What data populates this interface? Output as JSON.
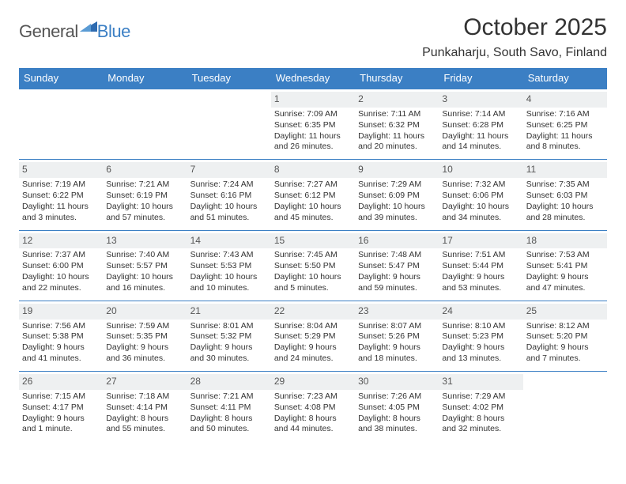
{
  "logo": {
    "text1": "General",
    "text2": "Blue"
  },
  "title": "October 2025",
  "location": "Punkaharju, South Savo, Finland",
  "colors": {
    "header_bg": "#3b7fc4",
    "header_text": "#ffffff",
    "daynum_bg": "#eef0f1",
    "rule": "#3b7fc4",
    "body_text": "#333333",
    "page_bg": "#ffffff"
  },
  "weekdays": [
    "Sunday",
    "Monday",
    "Tuesday",
    "Wednesday",
    "Thursday",
    "Friday",
    "Saturday"
  ],
  "weeks": [
    [
      null,
      null,
      null,
      {
        "n": "1",
        "sunrise": "7:09 AM",
        "sunset": "6:35 PM",
        "daylight": "11 hours and 26 minutes."
      },
      {
        "n": "2",
        "sunrise": "7:11 AM",
        "sunset": "6:32 PM",
        "daylight": "11 hours and 20 minutes."
      },
      {
        "n": "3",
        "sunrise": "7:14 AM",
        "sunset": "6:28 PM",
        "daylight": "11 hours and 14 minutes."
      },
      {
        "n": "4",
        "sunrise": "7:16 AM",
        "sunset": "6:25 PM",
        "daylight": "11 hours and 8 minutes."
      }
    ],
    [
      {
        "n": "5",
        "sunrise": "7:19 AM",
        "sunset": "6:22 PM",
        "daylight": "11 hours and 3 minutes."
      },
      {
        "n": "6",
        "sunrise": "7:21 AM",
        "sunset": "6:19 PM",
        "daylight": "10 hours and 57 minutes."
      },
      {
        "n": "7",
        "sunrise": "7:24 AM",
        "sunset": "6:16 PM",
        "daylight": "10 hours and 51 minutes."
      },
      {
        "n": "8",
        "sunrise": "7:27 AM",
        "sunset": "6:12 PM",
        "daylight": "10 hours and 45 minutes."
      },
      {
        "n": "9",
        "sunrise": "7:29 AM",
        "sunset": "6:09 PM",
        "daylight": "10 hours and 39 minutes."
      },
      {
        "n": "10",
        "sunrise": "7:32 AM",
        "sunset": "6:06 PM",
        "daylight": "10 hours and 34 minutes."
      },
      {
        "n": "11",
        "sunrise": "7:35 AM",
        "sunset": "6:03 PM",
        "daylight": "10 hours and 28 minutes."
      }
    ],
    [
      {
        "n": "12",
        "sunrise": "7:37 AM",
        "sunset": "6:00 PM",
        "daylight": "10 hours and 22 minutes."
      },
      {
        "n": "13",
        "sunrise": "7:40 AM",
        "sunset": "5:57 PM",
        "daylight": "10 hours and 16 minutes."
      },
      {
        "n": "14",
        "sunrise": "7:43 AM",
        "sunset": "5:53 PM",
        "daylight": "10 hours and 10 minutes."
      },
      {
        "n": "15",
        "sunrise": "7:45 AM",
        "sunset": "5:50 PM",
        "daylight": "10 hours and 5 minutes."
      },
      {
        "n": "16",
        "sunrise": "7:48 AM",
        "sunset": "5:47 PM",
        "daylight": "9 hours and 59 minutes."
      },
      {
        "n": "17",
        "sunrise": "7:51 AM",
        "sunset": "5:44 PM",
        "daylight": "9 hours and 53 minutes."
      },
      {
        "n": "18",
        "sunrise": "7:53 AM",
        "sunset": "5:41 PM",
        "daylight": "9 hours and 47 minutes."
      }
    ],
    [
      {
        "n": "19",
        "sunrise": "7:56 AM",
        "sunset": "5:38 PM",
        "daylight": "9 hours and 41 minutes."
      },
      {
        "n": "20",
        "sunrise": "7:59 AM",
        "sunset": "5:35 PM",
        "daylight": "9 hours and 36 minutes."
      },
      {
        "n": "21",
        "sunrise": "8:01 AM",
        "sunset": "5:32 PM",
        "daylight": "9 hours and 30 minutes."
      },
      {
        "n": "22",
        "sunrise": "8:04 AM",
        "sunset": "5:29 PM",
        "daylight": "9 hours and 24 minutes."
      },
      {
        "n": "23",
        "sunrise": "8:07 AM",
        "sunset": "5:26 PM",
        "daylight": "9 hours and 18 minutes."
      },
      {
        "n": "24",
        "sunrise": "8:10 AM",
        "sunset": "5:23 PM",
        "daylight": "9 hours and 13 minutes."
      },
      {
        "n": "25",
        "sunrise": "8:12 AM",
        "sunset": "5:20 PM",
        "daylight": "9 hours and 7 minutes."
      }
    ],
    [
      {
        "n": "26",
        "sunrise": "7:15 AM",
        "sunset": "4:17 PM",
        "daylight": "9 hours and 1 minute."
      },
      {
        "n": "27",
        "sunrise": "7:18 AM",
        "sunset": "4:14 PM",
        "daylight": "8 hours and 55 minutes."
      },
      {
        "n": "28",
        "sunrise": "7:21 AM",
        "sunset": "4:11 PM",
        "daylight": "8 hours and 50 minutes."
      },
      {
        "n": "29",
        "sunrise": "7:23 AM",
        "sunset": "4:08 PM",
        "daylight": "8 hours and 44 minutes."
      },
      {
        "n": "30",
        "sunrise": "7:26 AM",
        "sunset": "4:05 PM",
        "daylight": "8 hours and 38 minutes."
      },
      {
        "n": "31",
        "sunrise": "7:29 AM",
        "sunset": "4:02 PM",
        "daylight": "8 hours and 32 minutes."
      },
      null
    ]
  ],
  "labels": {
    "sunrise": "Sunrise: ",
    "sunset": "Sunset: ",
    "daylight": "Daylight: "
  }
}
